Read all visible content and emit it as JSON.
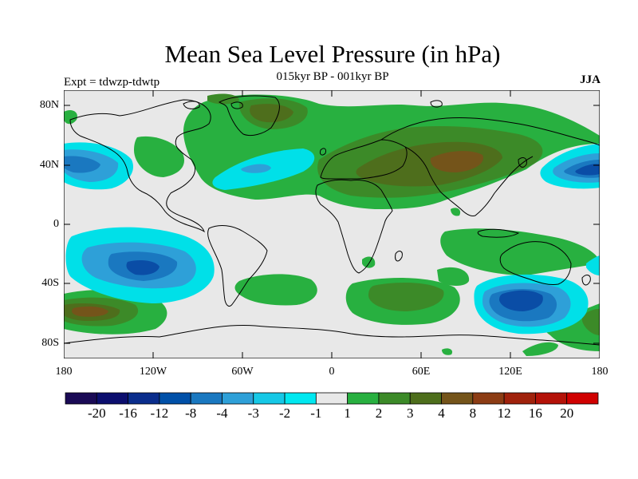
{
  "title": "Mean Sea Level Pressure (in hPa)",
  "subtitle": "015kyr BP - 001kyr BP",
  "left_label": "Expt = tdwzp-tdwtp",
  "right_label": "JJA",
  "lat_labels": [
    "80N",
    "40N",
    "0",
    "40S",
    "80S"
  ],
  "lon_labels": [
    "180",
    "120W",
    "60W",
    "0",
    "60E",
    "120E",
    "180"
  ],
  "colorbar": {
    "labels": [
      "-20",
      "-16",
      "-12",
      "-8",
      "-4",
      "-3",
      "-2",
      "-1",
      "1",
      "2",
      "3",
      "4",
      "8",
      "12",
      "16",
      "20"
    ],
    "colors": [
      "#1a0a55",
      "#0c0e6e",
      "#0a2d8c",
      "#0050a8",
      "#1a78c0",
      "#2ea0d8",
      "#16c8e6",
      "#00e8f0",
      "#e8e8e8",
      "#28b040",
      "#3c8a28",
      "#4e6e1c",
      "#74541a",
      "#8c3c14",
      "#a0220c",
      "#b41208",
      "#d00000"
    ]
  },
  "palette": {
    "ocean": "#e8e8e8",
    "cyan": "#00e0e8",
    "light_blue": "#2ea0d8",
    "blue": "#1a78c0",
    "dark_blue": "#0a4da6",
    "green": "#28b040",
    "dark_green": "#3c8a28",
    "olive": "#4e6e1c",
    "brown": "#74541a"
  }
}
